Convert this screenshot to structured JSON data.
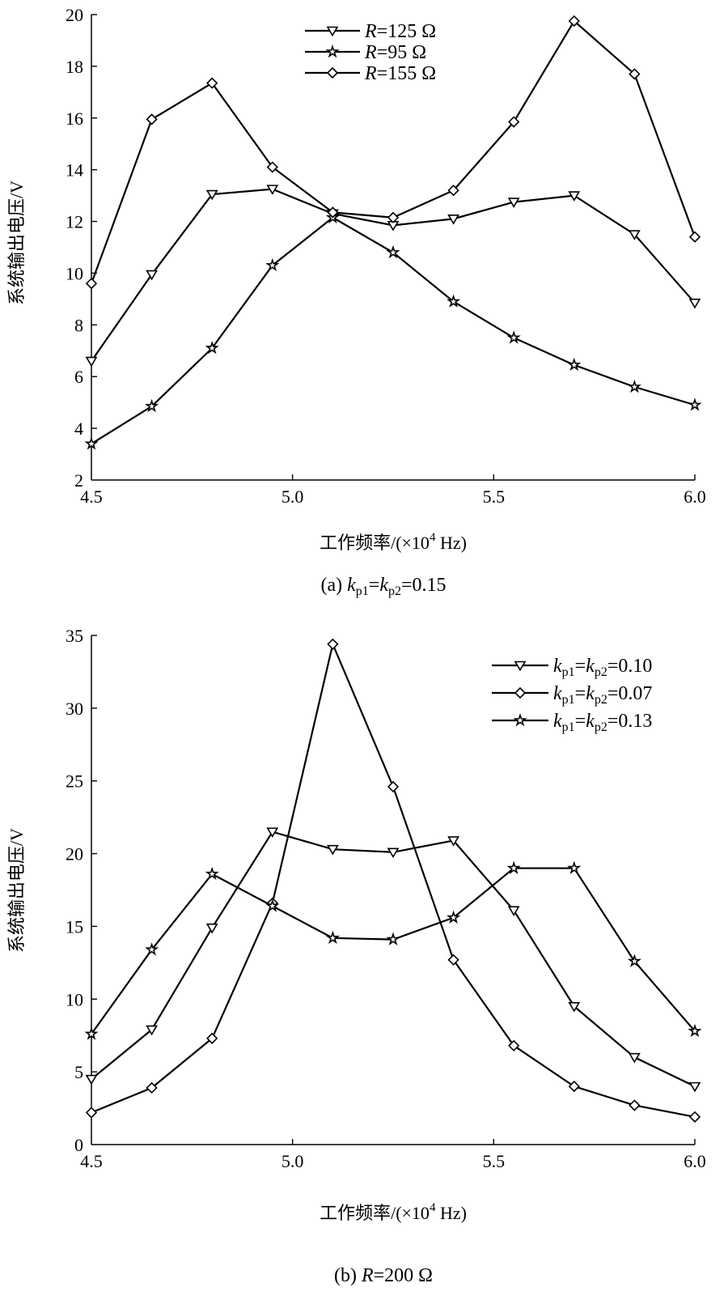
{
  "chart_data": [
    {
      "type": "line",
      "title": "",
      "xlabel_main": "工作频率/(×10",
      "xlabel_sup": "4",
      "xlabel_tail": " Hz)",
      "ylabel": "系统输出电压/V",
      "xlim": [
        4.5,
        6.0
      ],
      "ylim": [
        2,
        20
      ],
      "x_ticks": [
        "4.5",
        "5.0",
        "5.5",
        "6.0"
      ],
      "x_tick_values": [
        4.5,
        5.0,
        5.5,
        6.0
      ],
      "y_ticks": [
        "2",
        "4",
        "6",
        "8",
        "10",
        "12",
        "14",
        "16",
        "18",
        "20"
      ],
      "y_tick_values": [
        2,
        4,
        6,
        8,
        10,
        12,
        14,
        16,
        18,
        20
      ],
      "x": [
        4.5,
        4.65,
        4.8,
        4.95,
        5.1,
        5.25,
        5.4,
        5.55,
        5.7,
        5.85,
        6.0
      ],
      "caption": {
        "prefix": "(a) ",
        "v1": "k",
        "s1": "p1",
        "eq1": "=",
        "v2": "k",
        "s2": "p2",
        "rest": "=0.15"
      },
      "legend_position": "top-center",
      "grid": false,
      "series": [
        {
          "name_var": "R",
          "name_rest": "=125 Ω",
          "marker": "triangle-down",
          "values": [
            6.6,
            9.95,
            13.05,
            13.25,
            12.3,
            11.85,
            12.1,
            12.75,
            13.0,
            11.5,
            8.85
          ]
        },
        {
          "name_var": "R",
          "name_rest": "=95 Ω",
          "marker": "star",
          "values": [
            3.4,
            4.85,
            7.1,
            10.3,
            12.15,
            10.8,
            8.9,
            7.5,
            6.45,
            5.6,
            4.9
          ]
        },
        {
          "name_var": "R",
          "name_rest": "=155 Ω",
          "marker": "diamond",
          "values": [
            9.6,
            15.95,
            17.35,
            14.1,
            12.35,
            12.15,
            13.2,
            15.85,
            19.75,
            17.7,
            11.4
          ]
        }
      ]
    },
    {
      "type": "line",
      "title": "",
      "xlabel_main": "工作频率/(×10",
      "xlabel_sup": "4",
      "xlabel_tail": " Hz)",
      "ylabel": "系统输出电压/V",
      "xlim": [
        4.5,
        6.0
      ],
      "ylim": [
        0,
        35
      ],
      "x_ticks": [
        "4.5",
        "5.0",
        "5.5",
        "6.0"
      ],
      "x_tick_values": [
        4.5,
        5.0,
        5.5,
        6.0
      ],
      "y_ticks": [
        "0",
        "5",
        "10",
        "15",
        "20",
        "25",
        "30",
        "35"
      ],
      "y_tick_values": [
        0,
        5,
        10,
        15,
        20,
        25,
        30,
        35
      ],
      "x": [
        4.5,
        4.65,
        4.8,
        4.95,
        5.1,
        5.25,
        5.4,
        5.55,
        5.7,
        5.85,
        6.0
      ],
      "caption": {
        "prefix": "(b) ",
        "v1": "R",
        "rest": "=200 Ω"
      },
      "legend_position": "top-right",
      "grid": false,
      "series": [
        {
          "name_var": "k",
          "name_sub1": "p1",
          "name_eq": "=",
          "name_var2": "k",
          "name_sub2": "p2",
          "name_rest": "=0.10",
          "marker": "triangle-down",
          "values": [
            4.5,
            7.9,
            14.9,
            21.5,
            20.3,
            20.1,
            20.9,
            16.1,
            9.5,
            6.0,
            4.0
          ]
        },
        {
          "name_var": "k",
          "name_sub1": "p1",
          "name_eq": "=",
          "name_var2": "k",
          "name_sub2": "p2",
          "name_rest": "=0.07",
          "marker": "diamond",
          "values": [
            2.2,
            3.9,
            7.3,
            16.6,
            34.4,
            24.6,
            12.7,
            6.8,
            4.0,
            2.7,
            1.9
          ]
        },
        {
          "name_var": "k",
          "name_sub1": "p1",
          "name_eq": "=",
          "name_var2": "k",
          "name_sub2": "p2",
          "name_rest": "=0.13",
          "marker": "star",
          "values": [
            7.6,
            13.4,
            18.6,
            16.4,
            14.2,
            14.1,
            15.6,
            19.0,
            19.0,
            12.6,
            7.8
          ]
        }
      ]
    }
  ]
}
